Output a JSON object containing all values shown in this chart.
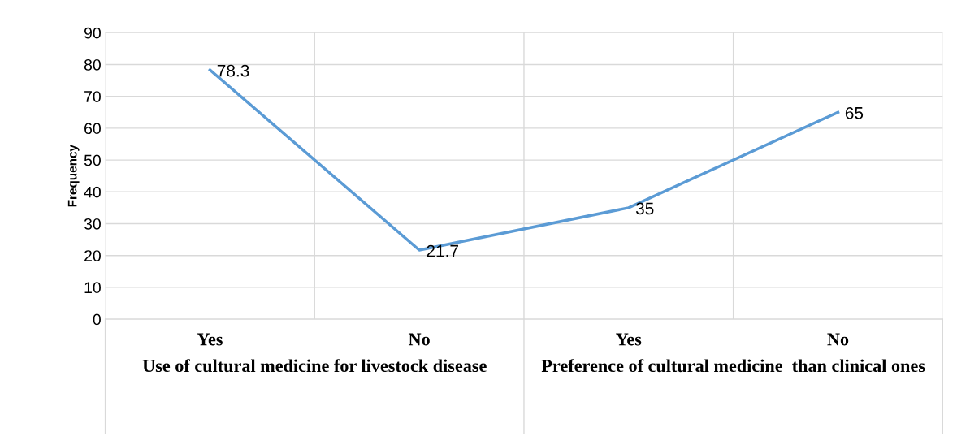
{
  "chart_data": {
    "type": "line",
    "ylabel": "Frequency",
    "categories": [
      "Yes",
      "No",
      "Yes",
      "No"
    ],
    "series": [
      {
        "color": "#5b9bd5",
        "values": [
          78.3,
          21.7,
          35,
          65
        ]
      }
    ],
    "ylim": [
      0,
      90
    ],
    "yticks": [
      0,
      10,
      20,
      30,
      40,
      50,
      60,
      70,
      80,
      90
    ],
    "grid": true,
    "data_labels": true,
    "marker": "none",
    "line_style": "solid",
    "annotations": [
      "Use of cultural medicine for livestock disease",
      "Preference of cultural medicine  than clinical ones"
    ]
  }
}
